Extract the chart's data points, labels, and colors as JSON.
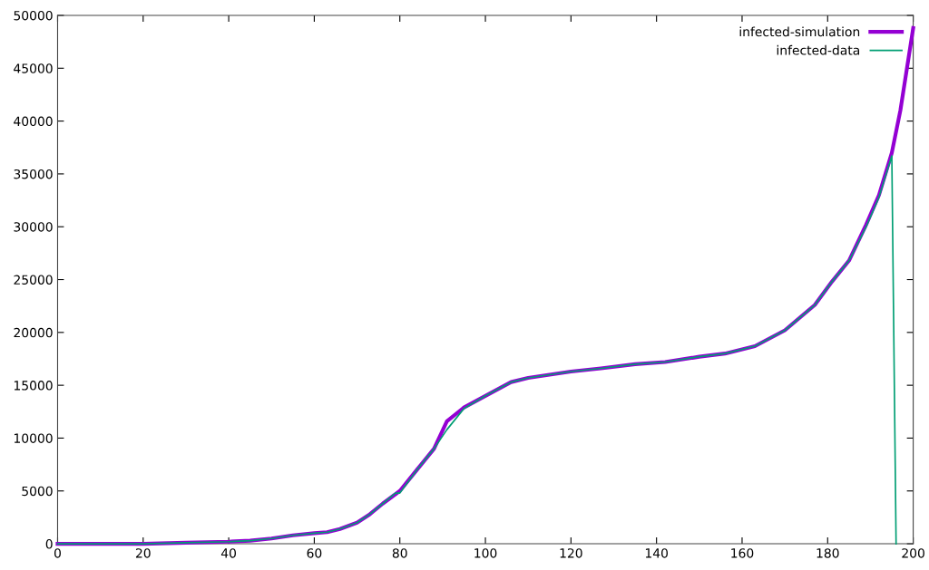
{
  "chart_data": {
    "type": "line",
    "xlim": [
      0,
      200
    ],
    "ylim": [
      0,
      50000
    ],
    "xticks": [
      0,
      20,
      40,
      60,
      80,
      100,
      120,
      140,
      160,
      180,
      200
    ],
    "yticks": [
      0,
      5000,
      10000,
      15000,
      20000,
      25000,
      30000,
      35000,
      40000,
      45000,
      50000
    ],
    "grid": false,
    "legend": "top right",
    "marker": "none",
    "line_style": "solid",
    "series": [
      {
        "name": "infected-simulation",
        "color": "#9400d3",
        "x": [
          0,
          10,
          20,
          30,
          40,
          45,
          50,
          55,
          60,
          63,
          66,
          70,
          73,
          76,
          80,
          84,
          88,
          91,
          95,
          100,
          106,
          110,
          120,
          127,
          135,
          142,
          150,
          156,
          163,
          170,
          177,
          181,
          185,
          189,
          192,
          195,
          197,
          200
        ],
        "values": [
          0,
          0,
          0,
          100,
          200,
          300,
          500,
          800,
          1000,
          1100,
          1400,
          2000,
          2800,
          3800,
          5000,
          7000,
          9000,
          11600,
          12900,
          14000,
          15300,
          15700,
          16300,
          16600,
          17000,
          17200,
          17700,
          18000,
          18700,
          20200,
          22600,
          24800,
          26800,
          30200,
          33000,
          37000,
          41000,
          48800
        ]
      },
      {
        "name": "infected-data",
        "color": "#009e73",
        "x": [
          0,
          10,
          20,
          30,
          40,
          45,
          50,
          55,
          60,
          63,
          66,
          70,
          73,
          76,
          79,
          80,
          84,
          88,
          91,
          95,
          100,
          106,
          110,
          120,
          127,
          135,
          142,
          150,
          156,
          163,
          170,
          177,
          181,
          185,
          189,
          192,
          195,
          196
        ],
        "values": [
          0,
          0,
          0,
          100,
          200,
          300,
          500,
          800,
          1000,
          1100,
          1400,
          2000,
          2800,
          3800,
          4800,
          4800,
          7000,
          9000,
          10800,
          12800,
          14000,
          15300,
          15700,
          16300,
          16600,
          17000,
          17200,
          17700,
          18000,
          18700,
          20200,
          22600,
          24800,
          26800,
          30000,
          32800,
          36700,
          0
        ]
      }
    ]
  }
}
